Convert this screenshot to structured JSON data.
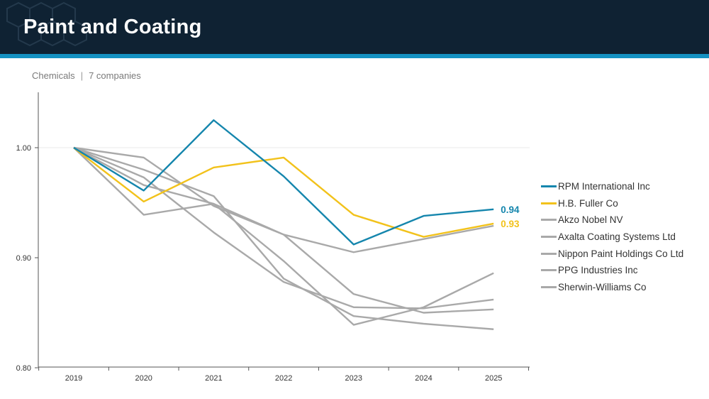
{
  "header": {
    "title": "Paint and Coating"
  },
  "subtitle": {
    "sector": "Chemicals",
    "separator": "|",
    "count": "7 companies"
  },
  "colors": {
    "header_bg": "#0f2233",
    "accent_bar": "#1592c2",
    "rpm": "#1586ad",
    "hb_fuller": "#f2c21b",
    "peer": "#a9a9a9"
  },
  "chart_data": {
    "type": "line",
    "title": "",
    "xlabel": "",
    "ylabel": "",
    "categories": [
      "2019",
      "2020",
      "2021",
      "2022",
      "2023",
      "2024",
      "2025"
    ],
    "ylim": [
      0.8,
      1.05
    ],
    "yticks": [
      "0.80",
      "0.90",
      "1.00"
    ],
    "ytick_values": [
      0.8,
      0.9,
      1.0
    ],
    "grid": "horizontal at 1.00 only",
    "legend_position": "right",
    "series": [
      {
        "name": "RPM International Inc",
        "color": "#1586ad",
        "values": [
          1.0,
          0.961,
          1.025,
          0.974,
          0.912,
          0.938,
          0.944
        ],
        "end_label": "0.94"
      },
      {
        "name": "H.B. Fuller Co",
        "color": "#f2c21b",
        "values": [
          1.0,
          0.951,
          0.982,
          0.991,
          0.939,
          0.919,
          0.931
        ],
        "end_label": "0.93"
      },
      {
        "name": "Akzo Nobel NV",
        "color": "#a9a9a9",
        "values": [
          1.0,
          0.991,
          0.947,
          0.921,
          0.905,
          0.917,
          0.929
        ]
      },
      {
        "name": "Axalta Coating Systems Ltd",
        "color": "#a9a9a9",
        "values": [
          1.0,
          0.939,
          0.949,
          0.897,
          0.839,
          0.855,
          0.886
        ]
      },
      {
        "name": "Nippon Paint Holdings Co Ltd",
        "color": "#a9a9a9",
        "values": [
          1.0,
          0.98,
          0.956,
          0.881,
          0.847,
          0.84,
          0.835
        ]
      },
      {
        "name": "PPG Industries Inc",
        "color": "#a9a9a9",
        "values": [
          1.0,
          0.973,
          0.923,
          0.878,
          0.855,
          0.854,
          0.862
        ]
      },
      {
        "name": "Sherwin-Williams Co",
        "color": "#a9a9a9",
        "values": [
          1.0,
          0.966,
          0.949,
          0.921,
          0.867,
          0.85,
          0.853
        ]
      }
    ]
  }
}
